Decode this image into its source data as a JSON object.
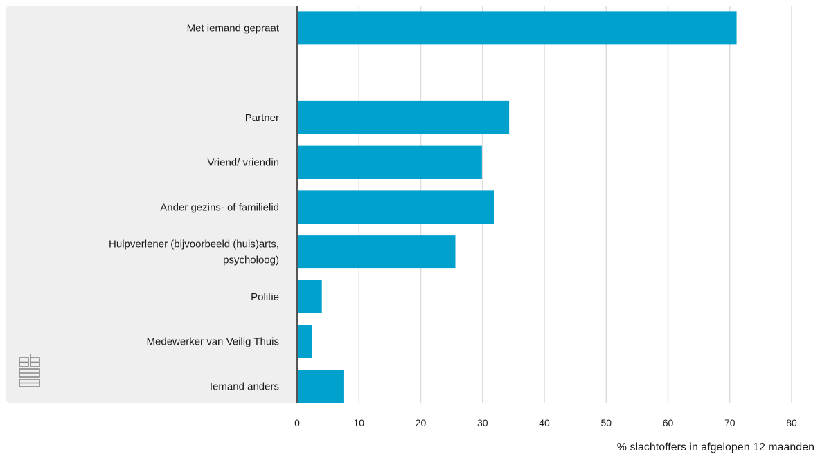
{
  "chart_data": {
    "type": "bar",
    "orientation": "horizontal",
    "categories": [
      "Met iemand gepraat",
      "",
      "Partner",
      "Vriend/ vriendin",
      "Ander gezins- of familielid",
      "Hulpverlener (bijvoorbeeld (huis)arts, psycholoog)",
      "Politie",
      "Medewerker van Veilig Thuis",
      "Iemand anders"
    ],
    "category_lines": [
      [
        "Met iemand gepraat"
      ],
      [],
      [
        "Partner"
      ],
      [
        "Vriend/ vriendin"
      ],
      [
        "Ander gezins- of familielid"
      ],
      [
        "Hulpverlener (bijvoorbeeld (huis)arts,",
        "psycholoog)"
      ],
      [
        "Politie"
      ],
      [
        "Medewerker van Veilig Thuis"
      ],
      [
        "Iemand anders"
      ]
    ],
    "values": [
      71.1,
      null,
      34.3,
      29.9,
      31.9,
      25.6,
      4.0,
      2.4,
      7.5
    ],
    "xlim": [
      0,
      80
    ],
    "xticks": [
      0,
      10,
      20,
      30,
      40,
      50,
      60,
      70,
      80
    ],
    "xlabel": "% slachtoffers in afgelopen 12 maanden",
    "ylabel": "",
    "title": "",
    "grid": true,
    "bar_color": "#00a1cd",
    "grid_color": "#dcdcdc",
    "axis_color": "#555555"
  },
  "logo": {
    "name": "cbs-logo-icon",
    "color": "#888888"
  }
}
